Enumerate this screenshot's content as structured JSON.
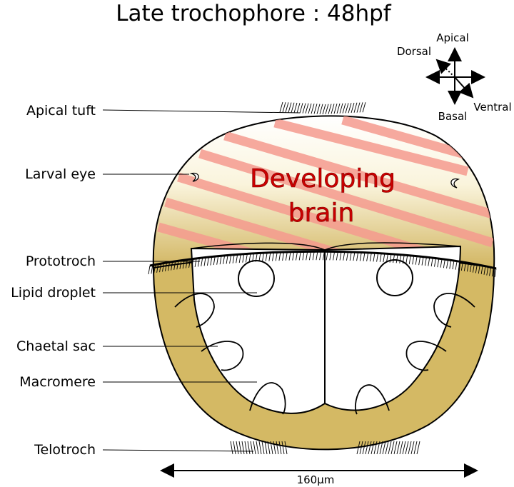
{
  "title": "Late trochophore : 48hpf",
  "labels": {
    "apical_tuft": "Apical tuft",
    "larval_eye": "Larval eye",
    "prototroch": "Prototroch",
    "lipid_droplet": "Lipid droplet",
    "chaetal_sac": "Chaetal sac",
    "macromere": "Macromere",
    "telotroch": "Telotroch"
  },
  "brain": {
    "line1": "Developing",
    "line2": "brain"
  },
  "compass": {
    "apical": "Apical",
    "dorsal": "Dorsal",
    "basal": "Basal",
    "ventral": "Ventral"
  },
  "scale_bar": "160µm",
  "colors": {
    "body_tan": "#d4b964",
    "head_gradient_top": "#ffffff",
    "head_gradient_bottom": "#d4b964",
    "brain_stripes": "#f5a0a0",
    "brain_text": "#cc0000"
  }
}
